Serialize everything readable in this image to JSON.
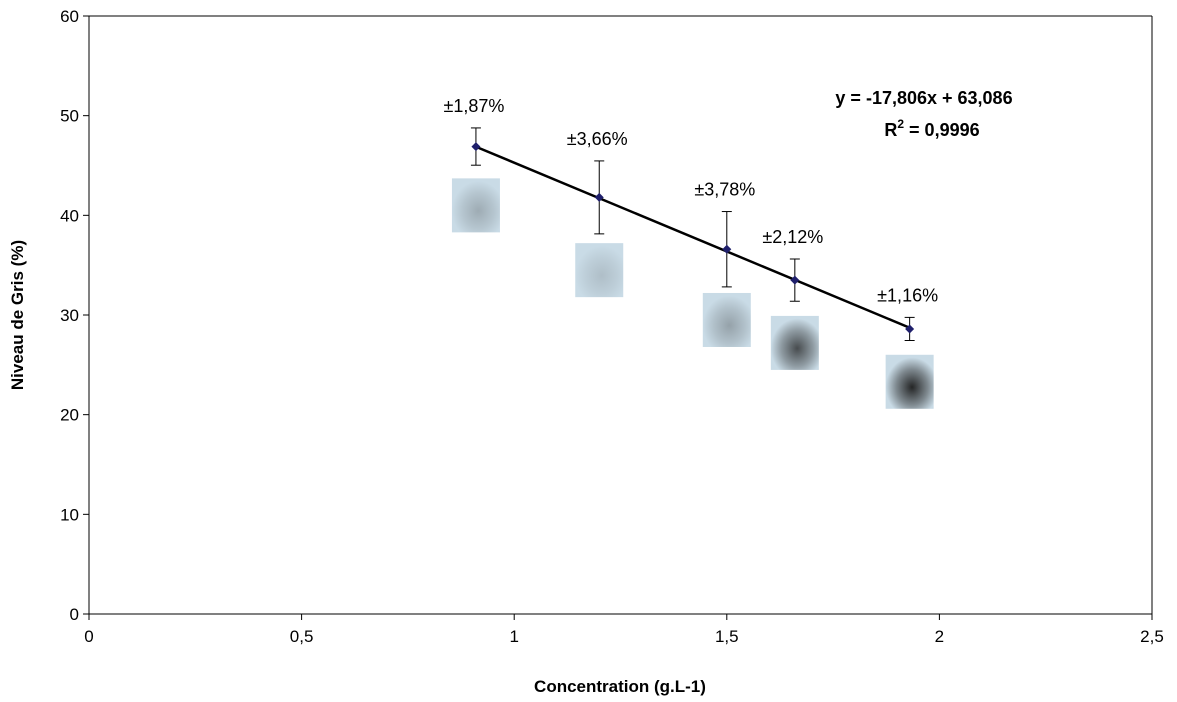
{
  "chart_data": {
    "type": "scatter",
    "xlabel": "Concentration (g.L-1)",
    "ylabel": "Niveau de Gris (%)",
    "xlim": [
      0,
      2.5
    ],
    "ylim": [
      0,
      60
    ],
    "x_ticks": [
      "0",
      "0,5",
      "1",
      "1,5",
      "2",
      "2,5"
    ],
    "y_ticks": [
      "0",
      "10",
      "20",
      "30",
      "40",
      "50",
      "60"
    ],
    "grid": false,
    "legend": "none",
    "series": [
      {
        "x": [
          0.91,
          1.2,
          1.5,
          1.66,
          1.93
        ],
        "y": [
          46.9,
          41.8,
          36.6,
          33.5,
          28.6
        ],
        "error": [
          1.87,
          3.66,
          3.78,
          2.12,
          1.16
        ],
        "point_labels": [
          "±1,87%",
          "±3,66%",
          "±3,78%",
          "±2,12%",
          "±1,16%"
        ]
      }
    ],
    "trendline": {
      "slope": -17.806,
      "intercept": 63.086,
      "equation": "y = -17,806x + 63,086",
      "r2_prefix": "R",
      "r2_sup": "2",
      "r2_value": " = 0,9996"
    },
    "spot_images": [
      {
        "x": 0.91,
        "y": 41,
        "intensity": 0.25
      },
      {
        "x": 1.2,
        "y": 34.5,
        "intensity": 0.15
      },
      {
        "x": 1.5,
        "y": 29.5,
        "intensity": 0.3
      },
      {
        "x": 1.66,
        "y": 27.2,
        "intensity": 0.75
      },
      {
        "x": 1.93,
        "y": 23.3,
        "intensity": 0.95
      }
    ],
    "colors": {
      "marker": "#1f1f6b",
      "line": "#000000",
      "spot_background": "#c9dbe6",
      "spot_dark": "#1c1c1c"
    }
  }
}
